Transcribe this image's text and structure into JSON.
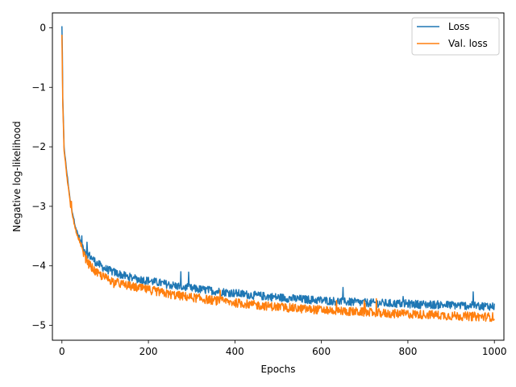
{
  "chart_data": {
    "type": "line",
    "xlabel": "Epochs",
    "ylabel": "Negative log-likelihood",
    "xlim": [
      -22,
      1022
    ],
    "ylim": [
      -5.25,
      0.25
    ],
    "xticks": [
      0,
      200,
      400,
      600,
      800,
      1000
    ],
    "yticks": [
      0,
      -1,
      -2,
      -3,
      -4,
      -5
    ],
    "xtick_labels": [
      "0",
      "200",
      "400",
      "600",
      "800",
      "1000"
    ],
    "ytick_labels": [
      "0",
      "−1",
      "−2",
      "−3",
      "−4",
      "−5"
    ],
    "grid": false,
    "legend_position": "top-right",
    "series": [
      {
        "name": "Loss",
        "color": "#1f77b4",
        "x": [
          0,
          2,
          5,
          10,
          15,
          20,
          30,
          40,
          50,
          60,
          80,
          100,
          125,
          150,
          175,
          200,
          250,
          300,
          350,
          400,
          450,
          500,
          550,
          600,
          650,
          700,
          750,
          800,
          850,
          900,
          950,
          1000
        ],
        "values": [
          0.02,
          -1.2,
          -2.0,
          -2.35,
          -2.65,
          -2.95,
          -3.3,
          -3.55,
          -3.7,
          -3.8,
          -3.95,
          -4.05,
          -4.12,
          -4.18,
          -4.22,
          -4.25,
          -4.32,
          -4.38,
          -4.42,
          -4.46,
          -4.5,
          -4.53,
          -4.56,
          -4.58,
          -4.6,
          -4.62,
          -4.63,
          -4.64,
          -4.65,
          -4.66,
          -4.67,
          -4.68
        ],
        "noise": 0.07
      },
      {
        "name": "Val. loss",
        "color": "#ff7f0e",
        "x": [
          0,
          2,
          5,
          10,
          15,
          20,
          30,
          40,
          50,
          60,
          80,
          100,
          125,
          150,
          175,
          200,
          250,
          300,
          350,
          400,
          450,
          500,
          550,
          600,
          650,
          700,
          750,
          800,
          850,
          900,
          950,
          1000
        ],
        "values": [
          -0.1,
          -1.3,
          -2.05,
          -2.4,
          -2.7,
          -3.0,
          -3.35,
          -3.6,
          -3.8,
          -3.95,
          -4.12,
          -4.2,
          -4.28,
          -4.33,
          -4.37,
          -4.4,
          -4.48,
          -4.53,
          -4.58,
          -4.62,
          -4.66,
          -4.69,
          -4.72,
          -4.74,
          -4.76,
          -4.78,
          -4.8,
          -4.81,
          -4.82,
          -4.84,
          -4.85,
          -4.86
        ],
        "noise": 0.075
      }
    ]
  }
}
